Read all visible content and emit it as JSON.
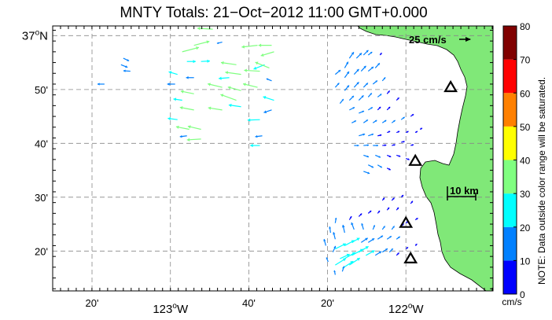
{
  "title": "MNTY Totals: 21−Oct−2012 11:00 GMT+0.000",
  "map": {
    "lon_range": [
      -123.5,
      -121.63
    ],
    "lat_range": [
      36.21,
      37.03
    ],
    "lon_ticks": [
      {
        "value": -123.333,
        "label": "20'",
        "major": false
      },
      {
        "value": -123.0,
        "label": "123",
        "sup": "o",
        "suffix": "W",
        "major": true
      },
      {
        "value": -122.667,
        "label": "40'",
        "major": false
      },
      {
        "value": -122.333,
        "label": "20'",
        "major": false
      },
      {
        "value": -122.0,
        "label": "122",
        "sup": "o",
        "suffix": "W",
        "major": true
      }
    ],
    "lat_ticks": [
      {
        "value": 37.0,
        "label": "37",
        "sup": "o",
        "suffix": "N",
        "major": true
      },
      {
        "value": 36.8333,
        "label": "50'",
        "major": false
      },
      {
        "value": 36.6667,
        "label": "40'",
        "major": false
      },
      {
        "value": 36.5,
        "label": "30'",
        "major": false
      },
      {
        "value": 36.3333,
        "label": "20'",
        "major": false
      }
    ],
    "grid": true,
    "land_color": "#80e878",
    "sites": [
      {
        "lon": -121.81,
        "lat": 36.84
      },
      {
        "lon": -121.96,
        "lat": 36.612
      },
      {
        "lon": -122.0,
        "lat": 36.42
      },
      {
        "lon": -121.98,
        "lat": 36.31
      }
    ]
  },
  "reference_vector": {
    "label": "25 cm/s",
    "speed": 25
  },
  "scale_bar": {
    "label": "10 km"
  },
  "colorbar": {
    "min": 0,
    "max": 80,
    "tick_labels": [
      "0",
      "10",
      "20",
      "30",
      "40",
      "50",
      "60",
      "70",
      "80"
    ],
    "colors": [
      "#0000ff",
      "#0080ff",
      "#00ffff",
      "#80ff80",
      "#ffff00",
      "#ff8000",
      "#ff0000",
      "#800000"
    ],
    "unit": "cm/s",
    "note": "NOTE: Data outside color range will be saturated."
  },
  "chart_data": {
    "type": "vector-field",
    "units": "cm/s",
    "columns": [
      "lon",
      "lat",
      "u",
      "v"
    ],
    "vectors": [
      [
        -122.82,
        37.02,
        -35,
        2
      ],
      [
        -122.78,
        36.98,
        -12,
        -3
      ],
      [
        -123.2,
        36.93,
        13,
        -6
      ],
      [
        -123.21,
        36.91,
        15,
        -6
      ],
      [
        -123.17,
        36.89,
        -16,
        1
      ],
      [
        -123.28,
        36.85,
        -16,
        0
      ],
      [
        -122.9,
        36.97,
        35,
        9
      ],
      [
        -122.95,
        36.95,
        38,
        10
      ],
      [
        -122.87,
        36.92,
        20,
        1
      ],
      [
        -122.93,
        36.92,
        20,
        0
      ],
      [
        -122.97,
        36.88,
        -20,
        6
      ],
      [
        -122.9,
        36.87,
        -18,
        0
      ],
      [
        -122.98,
        36.85,
        -18,
        0
      ],
      [
        -122.9,
        36.82,
        -30,
        6
      ],
      [
        -122.95,
        36.8,
        -20,
        3
      ],
      [
        -122.9,
        36.77,
        -32,
        6
      ],
      [
        -122.97,
        36.74,
        -22,
        3
      ],
      [
        -122.92,
        36.71,
        -30,
        6
      ],
      [
        -122.87,
        36.71,
        -30,
        7
      ],
      [
        -122.93,
        36.69,
        -16,
        -2
      ],
      [
        -122.87,
        36.68,
        -32,
        -2
      ],
      [
        -122.63,
        36.97,
        -36,
        -4
      ],
      [
        -122.57,
        36.97,
        -30,
        0
      ],
      [
        -122.72,
        36.91,
        -35,
        5
      ],
      [
        -122.7,
        36.88,
        -36,
        5
      ],
      [
        -122.62,
        36.89,
        -36,
        2
      ],
      [
        -122.6,
        36.91,
        -25,
        -10
      ],
      [
        -122.75,
        36.87,
        -24,
        -2
      ],
      [
        -122.78,
        36.84,
        -33,
        8
      ],
      [
        -122.7,
        36.83,
        -30,
        8
      ],
      [
        -122.63,
        36.84,
        -33,
        8
      ],
      [
        -122.72,
        36.8,
        -36,
        13
      ],
      [
        -122.7,
        36.78,
        -28,
        4
      ],
      [
        -122.78,
        36.77,
        -32,
        5
      ],
      [
        -122.62,
        36.74,
        -28,
        -1
      ],
      [
        -122.61,
        36.69,
        -16,
        -2
      ],
      [
        -122.62,
        36.66,
        -22,
        0
      ],
      [
        -122.56,
        36.95,
        -30,
        -9
      ],
      [
        -122.58,
        36.9,
        -32,
        13
      ],
      [
        -122.57,
        36.86,
        -12,
        5
      ],
      [
        -122.56,
        36.8,
        -25,
        8
      ],
      [
        -122.57,
        36.77,
        -18,
        -6
      ],
      [
        -122.26,
        36.9,
        8,
        14
      ],
      [
        -122.24,
        36.93,
        10,
        14
      ],
      [
        -122.21,
        36.93,
        12,
        12
      ],
      [
        -122.18,
        36.94,
        11,
        11
      ],
      [
        -122.16,
        36.94,
        9,
        7
      ],
      [
        -122.11,
        36.94,
        4,
        5
      ],
      [
        -122.3,
        36.88,
        12,
        10
      ],
      [
        -122.26,
        36.87,
        10,
        14
      ],
      [
        -122.22,
        36.88,
        11,
        12
      ],
      [
        -122.19,
        36.89,
        11,
        12
      ],
      [
        -122.16,
        36.89,
        12,
        10
      ],
      [
        -122.13,
        36.9,
        10,
        11
      ],
      [
        -122.3,
        36.84,
        9,
        10
      ],
      [
        -122.26,
        36.83,
        10,
        12
      ],
      [
        -122.22,
        36.84,
        11,
        12
      ],
      [
        -122.18,
        36.84,
        10,
        10
      ],
      [
        -122.14,
        36.85,
        10,
        8
      ],
      [
        -122.1,
        36.86,
        7,
        8
      ],
      [
        -122.28,
        36.79,
        8,
        10
      ],
      [
        -122.24,
        36.8,
        10,
        10
      ],
      [
        -122.2,
        36.8,
        11,
        11
      ],
      [
        -122.16,
        36.81,
        8,
        9
      ],
      [
        -122.12,
        36.81,
        9,
        7
      ],
      [
        -122.08,
        36.82,
        6,
        7
      ],
      [
        -122.24,
        36.77,
        12,
        6
      ],
      [
        -122.2,
        36.76,
        12,
        5
      ],
      [
        -122.16,
        36.77,
        10,
        6
      ],
      [
        -122.12,
        36.77,
        7,
        7
      ],
      [
        -122.08,
        36.77,
        7,
        7
      ],
      [
        -122.04,
        36.8,
        6,
        6
      ],
      [
        -122.23,
        36.73,
        10,
        5
      ],
      [
        -122.18,
        36.73,
        10,
        7
      ],
      [
        -122.14,
        36.73,
        9,
        6
      ],
      [
        -122.1,
        36.73,
        9,
        6
      ],
      [
        -122.06,
        36.73,
        8,
        6
      ],
      [
        -122.02,
        36.74,
        8,
        6
      ],
      [
        -121.98,
        36.75,
        7,
        5
      ],
      [
        -122.2,
        36.69,
        14,
        4
      ],
      [
        -122.16,
        36.69,
        12,
        4
      ],
      [
        -122.12,
        36.69,
        9,
        2
      ],
      [
        -122.08,
        36.7,
        7,
        3
      ],
      [
        -122.04,
        36.7,
        7,
        3
      ],
      [
        -122.0,
        36.7,
        6,
        3
      ],
      [
        -121.96,
        36.7,
        5,
        3
      ],
      [
        -121.94,
        36.71,
        5,
        3
      ],
      [
        -122.22,
        36.66,
        11,
        0
      ],
      [
        -122.18,
        36.66,
        12,
        1
      ],
      [
        -122.14,
        36.66,
        12,
        0
      ],
      [
        -122.1,
        36.66,
        9,
        1
      ],
      [
        -122.06,
        36.66,
        8,
        2
      ],
      [
        -122.02,
        36.67,
        8,
        2
      ],
      [
        -121.98,
        36.66,
        7,
        2
      ],
      [
        -122.18,
        36.63,
        12,
        -4
      ],
      [
        -122.13,
        36.63,
        12,
        -5
      ],
      [
        -122.08,
        36.63,
        9,
        -4
      ],
      [
        -122.04,
        36.63,
        9,
        -3
      ],
      [
        -122.0,
        36.62,
        8,
        -3
      ],
      [
        -122.16,
        36.6,
        12,
        -6
      ],
      [
        -122.12,
        36.6,
        10,
        -6
      ],
      [
        -122.08,
        36.59,
        8,
        -4
      ],
      [
        -122.18,
        36.58,
        14,
        -5
      ],
      [
        -122.28,
        36.31,
        22,
        10
      ],
      [
        -122.26,
        36.31,
        24,
        14
      ],
      [
        -122.23,
        36.32,
        26,
        14
      ],
      [
        -122.2,
        36.33,
        22,
        13
      ],
      [
        -122.17,
        36.32,
        20,
        11
      ],
      [
        -122.13,
        36.32,
        14,
        9
      ],
      [
        -122.1,
        36.33,
        12,
        8
      ],
      [
        -122.07,
        36.33,
        8,
        8
      ],
      [
        -122.04,
        36.32,
        6,
        6
      ],
      [
        -122.3,
        36.34,
        24,
        12
      ],
      [
        -122.26,
        36.35,
        22,
        12
      ],
      [
        -122.23,
        36.36,
        18,
        10
      ],
      [
        -122.19,
        36.36,
        15,
        10
      ],
      [
        -122.16,
        36.36,
        14,
        9
      ],
      [
        -122.12,
        36.37,
        12,
        8
      ],
      [
        -122.08,
        36.37,
        10,
        7
      ],
      [
        -122.04,
        36.37,
        8,
        6
      ],
      [
        -122.3,
        36.29,
        24,
        15
      ],
      [
        -122.27,
        36.28,
        25,
        16
      ],
      [
        -122.24,
        36.29,
        24,
        16
      ],
      [
        -122.3,
        36.37,
        -4,
        16
      ],
      [
        -122.26,
        36.39,
        -4,
        18
      ],
      [
        -122.22,
        36.4,
        -6,
        16
      ],
      [
        -122.18,
        36.4,
        -4,
        14
      ],
      [
        -122.14,
        36.4,
        4,
        10
      ],
      [
        -122.1,
        36.4,
        6,
        8
      ],
      [
        -122.06,
        36.4,
        6,
        8
      ],
      [
        -122.02,
        36.41,
        6,
        6
      ],
      [
        -122.24,
        36.43,
        5,
        8
      ],
      [
        -122.2,
        36.44,
        7,
        7
      ],
      [
        -122.16,
        36.45,
        7,
        6
      ],
      [
        -122.12,
        36.45,
        5,
        6
      ],
      [
        -122.08,
        36.46,
        5,
        6
      ],
      [
        -122.04,
        36.46,
        5,
        6
      ],
      [
        -122.06,
        36.49,
        6,
        6
      ],
      [
        -122.1,
        36.49,
        5,
        6
      ],
      [
        -122.02,
        36.5,
        5,
        5
      ],
      [
        -121.98,
        36.48,
        5,
        6
      ],
      [
        -122.0,
        36.42,
        5,
        4
      ],
      [
        -121.96,
        36.43,
        6,
        4
      ],
      [
        -122.3,
        36.42,
        2,
        12
      ],
      [
        -122.32,
        36.39,
        -2,
        14
      ],
      [
        -122.34,
        36.35,
        -4,
        15
      ],
      [
        -122.31,
        36.33,
        6,
        14
      ],
      [
        -122.27,
        36.27,
        4,
        12
      ],
      [
        -122.3,
        36.26,
        -2,
        10
      ],
      [
        -122.33,
        36.3,
        -4,
        10
      ],
      [
        -122.0,
        36.34,
        5,
        4
      ],
      [
        -121.96,
        36.35,
        4,
        4
      ]
    ]
  }
}
